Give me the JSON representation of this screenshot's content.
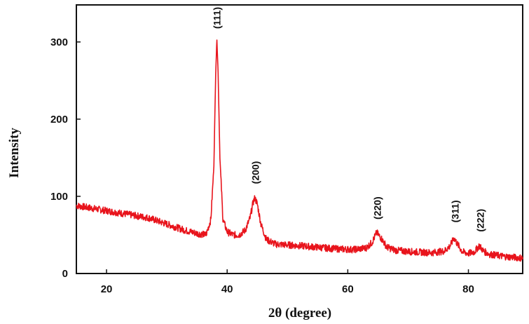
{
  "chart_data": {
    "type": "line",
    "xlabel": "2θ (degree)",
    "ylabel": "Intensity",
    "xlim": [
      15,
      89
    ],
    "ylim": [
      0,
      348
    ],
    "xticks": [
      20,
      40,
      60,
      80
    ],
    "yticks": [
      0,
      100,
      200,
      300
    ],
    "grid": false,
    "series_color": "#e8141c",
    "series": [
      {
        "x": [
          15,
          18,
          21,
          24,
          27,
          30,
          33,
          35,
          36.5,
          37.3,
          37.8,
          38.1,
          38.3,
          38.5,
          38.8,
          39.3,
          40,
          41,
          42,
          43,
          43.8,
          44.3,
          44.6,
          45,
          45.6,
          46.5,
          48,
          50,
          52,
          55,
          58,
          61,
          63,
          64,
          64.8,
          65.6,
          66.5,
          68,
          71,
          74,
          76,
          77,
          77.6,
          78.2,
          79,
          80,
          81,
          81.8,
          82.5,
          83.5,
          86,
          89
        ],
        "y": [
          88,
          84,
          80,
          76,
          72,
          64,
          56,
          52,
          50,
          70,
          140,
          260,
          304,
          260,
          150,
          70,
          54,
          50,
          50,
          56,
          72,
          92,
          98,
          90,
          64,
          44,
          38,
          37,
          36,
          34,
          32,
          31,
          33,
          40,
          53,
          45,
          34,
          30,
          28,
          27,
          29,
          36,
          46,
          38,
          28,
          26,
          28,
          36,
          29,
          25,
          22,
          20
        ]
      }
    ],
    "annotations": [
      {
        "text": "(111)",
        "x": 38.3,
        "y": 317
      },
      {
        "text": "(200)",
        "x": 44.7,
        "y": 116
      },
      {
        "text": "(220)",
        "x": 64.9,
        "y": 70
      },
      {
        "text": "(311)",
        "x": 77.8,
        "y": 66
      },
      {
        "text": "(222)",
        "x": 82.0,
        "y": 54
      }
    ]
  }
}
